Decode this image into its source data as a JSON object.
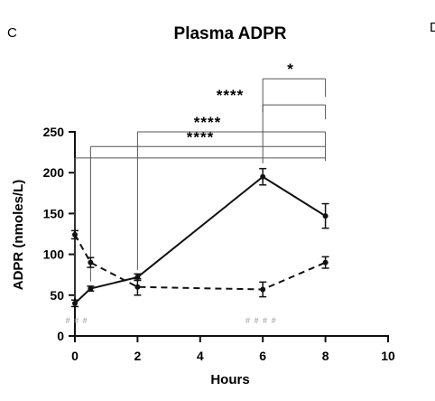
{
  "chart_data": {
    "type": "line",
    "panel_label": "C",
    "next_panel_label": "D",
    "title": "Plasma ADPR",
    "xlabel": "Hours",
    "ylabel": "ADPR (nmoles/L)",
    "xlim": [
      0,
      10
    ],
    "ylim": [
      0,
      250
    ],
    "xticks": [
      0,
      2,
      4,
      6,
      8,
      10
    ],
    "yticks": [
      0,
      50,
      100,
      150,
      200,
      250
    ],
    "grid": false,
    "series": [
      {
        "style": "solid",
        "x": [
          0,
          0.5,
          2,
          6,
          8
        ],
        "y": [
          40,
          58,
          72,
          195,
          147
        ],
        "err": [
          4,
          3,
          4,
          10,
          15
        ]
      },
      {
        "style": "dashed",
        "x": [
          0,
          0.5,
          2,
          6,
          8
        ],
        "y": [
          124,
          90,
          60,
          57,
          90
        ],
        "err": [
          5,
          6,
          10,
          9,
          7
        ]
      }
    ],
    "baseline_y": 218,
    "comparisons": [
      {
        "from": 0.5,
        "to": 8,
        "y": 232,
        "label": "****"
      },
      {
        "from": 2,
        "to": 8,
        "y": 250,
        "label": "****"
      },
      {
        "from": 6,
        "to": 8,
        "y": 283,
        "label": "****"
      },
      {
        "from": 6,
        "to": 8,
        "y": 315,
        "label": "*"
      }
    ],
    "hash_annotations": [
      {
        "x": 0,
        "label": "# # #"
      },
      {
        "x": 6,
        "label": "# # # #"
      }
    ]
  }
}
